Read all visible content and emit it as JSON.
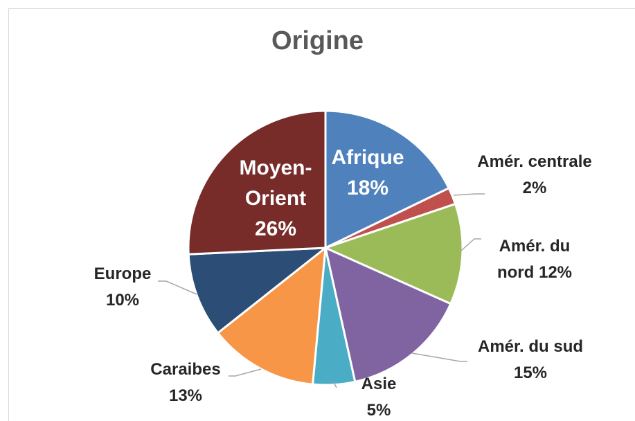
{
  "chart_data": {
    "type": "pie",
    "title": "Origine",
    "categories": [
      "Afrique",
      "Amér. centrale",
      "Amér. du nord",
      "Amér. du sud",
      "Asie",
      "Caraibes",
      "Europe",
      "Moyen-Orient"
    ],
    "values": [
      18,
      2,
      12,
      15,
      5,
      13,
      10,
      26
    ],
    "value_labels": [
      "18%",
      "2%",
      "12%",
      "15%",
      "5%",
      "13%",
      "10%",
      "26%"
    ],
    "colors": [
      "#4f81bd",
      "#c0504d",
      "#9bbb59",
      "#8064a2",
      "#4bacc6",
      "#f79646",
      "#2c4d75",
      "#772c2a"
    ]
  }
}
